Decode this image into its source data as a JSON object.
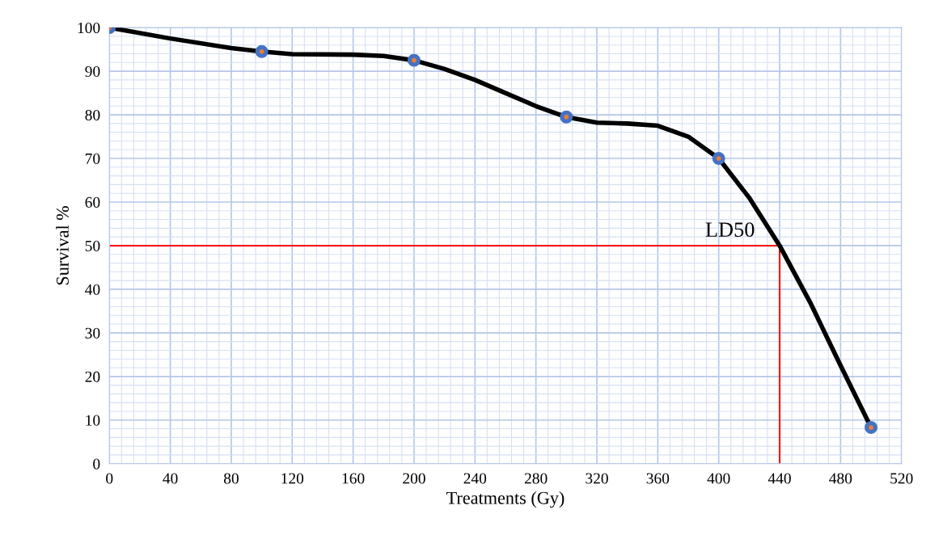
{
  "chart_data": {
    "type": "line",
    "xlabel": "Treatments (Gy)",
    "ylabel": "Survival %",
    "series": [
      {
        "color": "#000000",
        "x": [
          0,
          40,
          80,
          100,
          120,
          160,
          180,
          200,
          220,
          240,
          260,
          280,
          300,
          320,
          340,
          360,
          380,
          400,
          420,
          440,
          460,
          480,
          500
        ],
        "values": [
          100,
          97.5,
          95.3,
          94.5,
          93.9,
          93.8,
          93.5,
          92.5,
          90.5,
          88,
          85,
          82,
          79.5,
          78.2,
          78,
          77.5,
          75,
          70,
          61,
          50,
          37,
          22.5,
          8.3
        ]
      },
      {
        "type": "scatter",
        "color": "#4472c4",
        "marker": "circle",
        "x": [
          0,
          100,
          200,
          300,
          400,
          500
        ],
        "values": [
          100,
          94.5,
          92.5,
          79.5,
          70,
          8.3
        ]
      },
      {
        "color": "#ff0000",
        "x": [
          0,
          440,
          440
        ],
        "values": [
          50,
          50,
          0
        ]
      }
    ],
    "annotations": [
      {
        "text": "LD50",
        "x": 440,
        "y": 50
      }
    ],
    "xlim": [
      0,
      520
    ],
    "xticks": [
      0,
      40,
      80,
      120,
      160,
      200,
      240,
      280,
      320,
      360,
      400,
      440,
      480,
      520
    ],
    "ylim": [
      0,
      100
    ],
    "yticks": [
      0,
      10,
      20,
      30,
      40,
      50,
      60,
      70,
      80,
      90,
      100
    ],
    "grid": true,
    "marker": "none"
  }
}
